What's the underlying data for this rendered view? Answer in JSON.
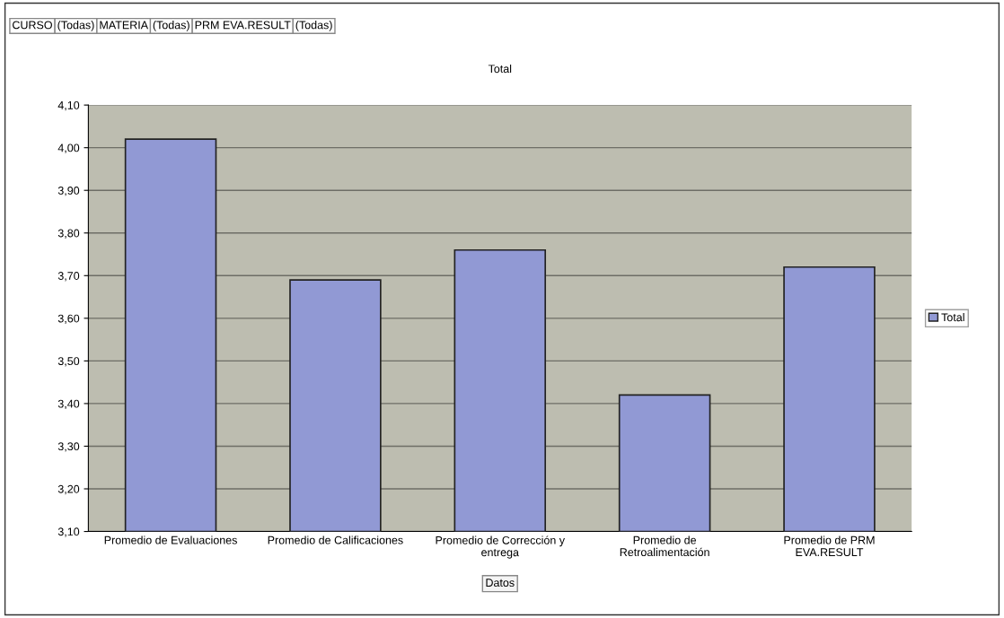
{
  "chart_data": {
    "type": "bar",
    "title": "Total",
    "xlabel": "Datos",
    "annotations": [
      "CURSO",
      "(Todas)",
      "MATERIA",
      "(Todas)",
      "PRM EVA.RESULT",
      "(Todas)"
    ],
    "categories": [
      "Promedio de Evaluaciones",
      "Promedio de Calificaciones",
      "Promedio de Corrección y\nentrega",
      "Promedio de\nRetroalimentación",
      "Promedio de PRM\nEVA.RESULT"
    ],
    "series": [
      {
        "name": "Total",
        "color": "#9199d4",
        "values": [
          4.02,
          3.69,
          3.76,
          3.42,
          3.72
        ]
      }
    ],
    "ylim": [
      3.1,
      4.1
    ],
    "yticks": [
      {
        "value": 3.1,
        "label": "3,10"
      },
      {
        "value": 3.2,
        "label": "3,20"
      },
      {
        "value": 3.3,
        "label": "3,30"
      },
      {
        "value": 3.4,
        "label": "3,40"
      },
      {
        "value": 3.5,
        "label": "3,50"
      },
      {
        "value": 3.6,
        "label": "3,60"
      },
      {
        "value": 3.7,
        "label": "3,70"
      },
      {
        "value": 3.8,
        "label": "3,80"
      },
      {
        "value": 3.9,
        "label": "3,90"
      },
      {
        "value": 4.0,
        "label": "4,00"
      },
      {
        "value": 4.1,
        "label": "4,10"
      }
    ],
    "grid": "y",
    "legend": "right"
  }
}
